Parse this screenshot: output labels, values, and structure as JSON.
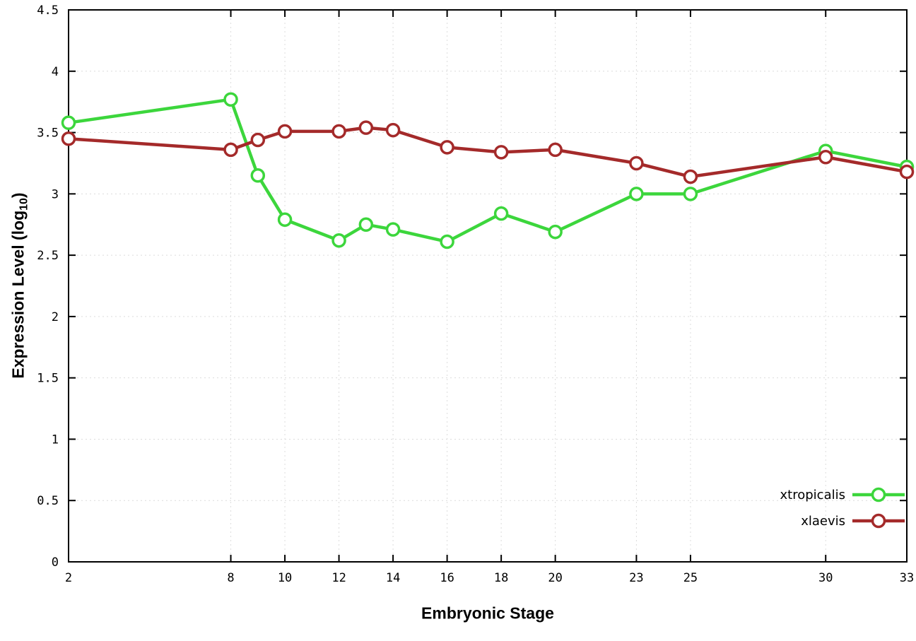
{
  "chart_data": {
    "type": "line",
    "title": "",
    "xlabel": "Embryonic Stage",
    "ylabel": {
      "prefix": "Expression Level (log",
      "sub": "10",
      "suffix": ")"
    },
    "xlim": [
      2,
      33
    ],
    "ylim": [
      0,
      4.5
    ],
    "x_ticks": [
      2,
      8,
      10,
      12,
      14,
      16,
      18,
      20,
      23,
      25,
      30,
      33
    ],
    "x_tick_labels": [
      "2",
      "8",
      "10",
      "12",
      "14",
      "16",
      "18",
      "20",
      "23",
      "25",
      "30",
      "33"
    ],
    "y_ticks": [
      0,
      0.5,
      1,
      1.5,
      2,
      2.5,
      3,
      3.5,
      4,
      4.5
    ],
    "y_tick_labels": [
      "0",
      "0.5",
      "1",
      "1.5",
      "2",
      "2.5",
      "3",
      "3.5",
      "4",
      "4.5"
    ],
    "grid": true,
    "legend_position": "bottom-right",
    "colors": {
      "xtropicalis": "#3cd63c",
      "xlaevis": "#a42a2a",
      "grid": "#dcdcdc",
      "border": "#000000"
    },
    "series": [
      {
        "name": "xtropicalis",
        "color": "#3cd63c",
        "x": [
          2,
          8,
          9,
          10,
          12,
          13,
          14,
          16,
          18,
          20,
          23,
          25,
          30,
          33
        ],
        "y": [
          3.58,
          3.77,
          3.15,
          2.79,
          2.62,
          2.75,
          2.71,
          2.61,
          2.84,
          2.69,
          3.0,
          3.0,
          3.35,
          3.22
        ]
      },
      {
        "name": "xlaevis",
        "color": "#a42a2a",
        "x": [
          2,
          8,
          9,
          10,
          12,
          13,
          14,
          16,
          18,
          20,
          23,
          25,
          30,
          33
        ],
        "y": [
          3.45,
          3.36,
          3.44,
          3.51,
          3.51,
          3.54,
          3.52,
          3.38,
          3.34,
          3.36,
          3.25,
          3.14,
          3.3,
          3.18
        ]
      }
    ]
  }
}
